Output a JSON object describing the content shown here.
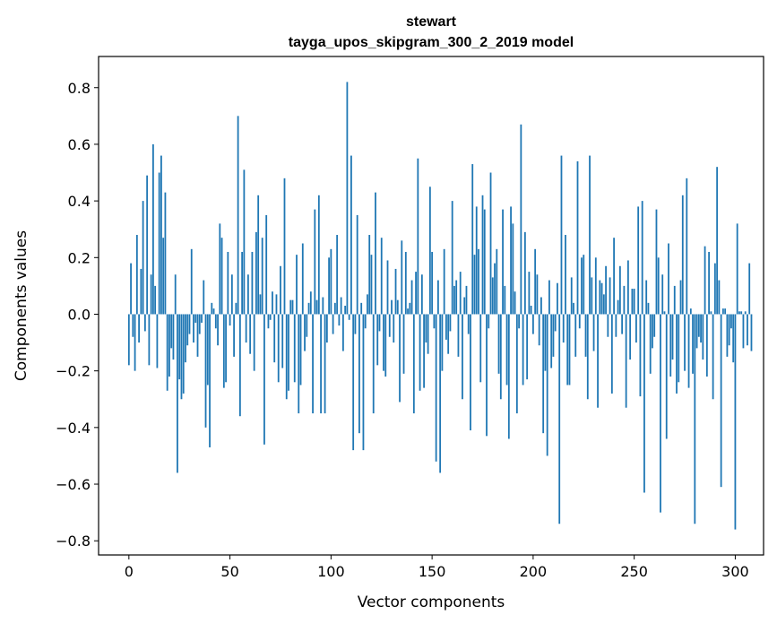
{
  "chart_data": {
    "type": "bar",
    "title": "stewart",
    "subtitle": "tayga_upos_skipgram_300_2_2019 model",
    "xlabel": "Vector components",
    "ylabel": "Components values",
    "xlim": [
      -15,
      314
    ],
    "ylim": [
      -0.85,
      0.91
    ],
    "xticks": [
      0,
      50,
      100,
      150,
      200,
      250,
      300
    ],
    "yticks": [
      -0.8,
      -0.6,
      -0.4,
      -0.2,
      0.0,
      0.2,
      0.4,
      0.6,
      0.8
    ],
    "ytick_labels": [
      "−0.8",
      "−0.6",
      "−0.4",
      "−0.2",
      "0.0",
      "0.2",
      "0.4",
      "0.6",
      "0.8"
    ],
    "grid": false,
    "bar_color": "#1f77b4",
    "values": [
      -0.18,
      0.18,
      -0.08,
      -0.2,
      0.28,
      -0.1,
      0.16,
      0.4,
      -0.06,
      0.49,
      -0.18,
      0.14,
      0.6,
      0.1,
      -0.19,
      0.5,
      0.56,
      0.27,
      0.43,
      -0.27,
      -0.22,
      -0.12,
      -0.16,
      0.14,
      -0.56,
      -0.23,
      -0.3,
      -0.28,
      -0.17,
      -0.11,
      -0.07,
      0.23,
      -0.1,
      -0.03,
      -0.15,
      -0.07,
      -0.03,
      0.12,
      -0.4,
      -0.25,
      -0.47,
      0.04,
      0.02,
      -0.05,
      -0.11,
      0.32,
      0.27,
      -0.26,
      -0.24,
      0.22,
      -0.04,
      0.14,
      -0.15,
      0.04,
      0.7,
      -0.36,
      0.22,
      0.51,
      -0.1,
      0.14,
      -0.14,
      0.22,
      -0.2,
      0.29,
      0.42,
      0.07,
      0.27,
      -0.46,
      0.35,
      -0.05,
      -0.02,
      0.08,
      -0.17,
      0.07,
      -0.24,
      0.17,
      -0.19,
      0.48,
      -0.3,
      -0.27,
      0.05,
      0.05,
      -0.24,
      0.21,
      -0.35,
      -0.25,
      0.25,
      -0.13,
      -0.08,
      0.04,
      0.08,
      -0.35,
      0.37,
      0.05,
      0.42,
      -0.35,
      0.06,
      -0.35,
      -0.1,
      0.2,
      0.23,
      -0.07,
      0.04,
      0.28,
      -0.04,
      0.06,
      -0.13,
      0.03,
      0.82,
      -0.02,
      0.56,
      -0.48,
      -0.07,
      0.35,
      -0.42,
      0.04,
      -0.48,
      -0.05,
      0.07,
      0.28,
      0.21,
      -0.35,
      0.43,
      -0.18,
      -0.06,
      0.27,
      -0.2,
      -0.22,
      0.19,
      -0.08,
      0.05,
      -0.1,
      0.16,
      0.05,
      -0.31,
      0.26,
      -0.21,
      0.22,
      0.02,
      0.04,
      0.12,
      -0.35,
      0.15,
      0.55,
      -0.27,
      0.14,
      -0.26,
      -0.1,
      -0.14,
      0.45,
      0.22,
      -0.05,
      -0.52,
      0.12,
      -0.56,
      -0.2,
      0.23,
      -0.09,
      -0.14,
      -0.06,
      0.4,
      0.1,
      0.12,
      -0.15,
      0.15,
      -0.3,
      0.06,
      0.1,
      -0.07,
      -0.41,
      0.53,
      0.21,
      0.38,
      0.23,
      -0.24,
      0.42,
      0.37,
      -0.43,
      -0.05,
      0.5,
      0.13,
      0.18,
      0.23,
      -0.21,
      -0.3,
      0.37,
      0.1,
      -0.25,
      -0.44,
      0.38,
      0.32,
      0.08,
      -0.35,
      -0.05,
      0.67,
      -0.25,
      0.29,
      -0.23,
      0.15,
      0.03,
      -0.07,
      0.23,
      0.14,
      -0.11,
      0.06,
      -0.42,
      -0.2,
      -0.5,
      0.12,
      -0.19,
      -0.15,
      -0.06,
      0.11,
      -0.74,
      0.56,
      -0.1,
      0.28,
      -0.25,
      -0.25,
      0.13,
      0.04,
      -0.15,
      0.54,
      -0.05,
      0.2,
      0.21,
      -0.15,
      -0.3,
      0.56,
      0.13,
      -0.13,
      0.2,
      -0.33,
      0.12,
      0.11,
      0.07,
      0.17,
      -0.08,
      0.13,
      -0.28,
      0.27,
      -0.08,
      0.05,
      0.17,
      -0.07,
      0.1,
      -0.33,
      0.19,
      -0.16,
      0.09,
      0.09,
      -0.1,
      0.38,
      -0.29,
      0.4,
      -0.63,
      0.12,
      0.04,
      -0.21,
      -0.12,
      -0.08,
      0.37,
      0.2,
      -0.7,
      0.14,
      0.01,
      -0.44,
      0.25,
      -0.22,
      -0.16,
      0.1,
      -0.28,
      -0.24,
      0.12,
      0.42,
      -0.2,
      0.48,
      -0.26,
      0.02,
      -0.21,
      -0.74,
      -0.12,
      -0.08,
      -0.1,
      -0.16,
      0.24,
      -0.22,
      0.22,
      0.01,
      -0.3,
      0.18,
      0.52,
      0.12,
      -0.61,
      0.02,
      0.02,
      -0.15,
      -0.11,
      -0.05,
      -0.17,
      -0.76,
      0.32,
      0.01,
      0.01,
      -0.12,
      0.01,
      -0.11,
      0.18,
      -0.13
    ]
  }
}
